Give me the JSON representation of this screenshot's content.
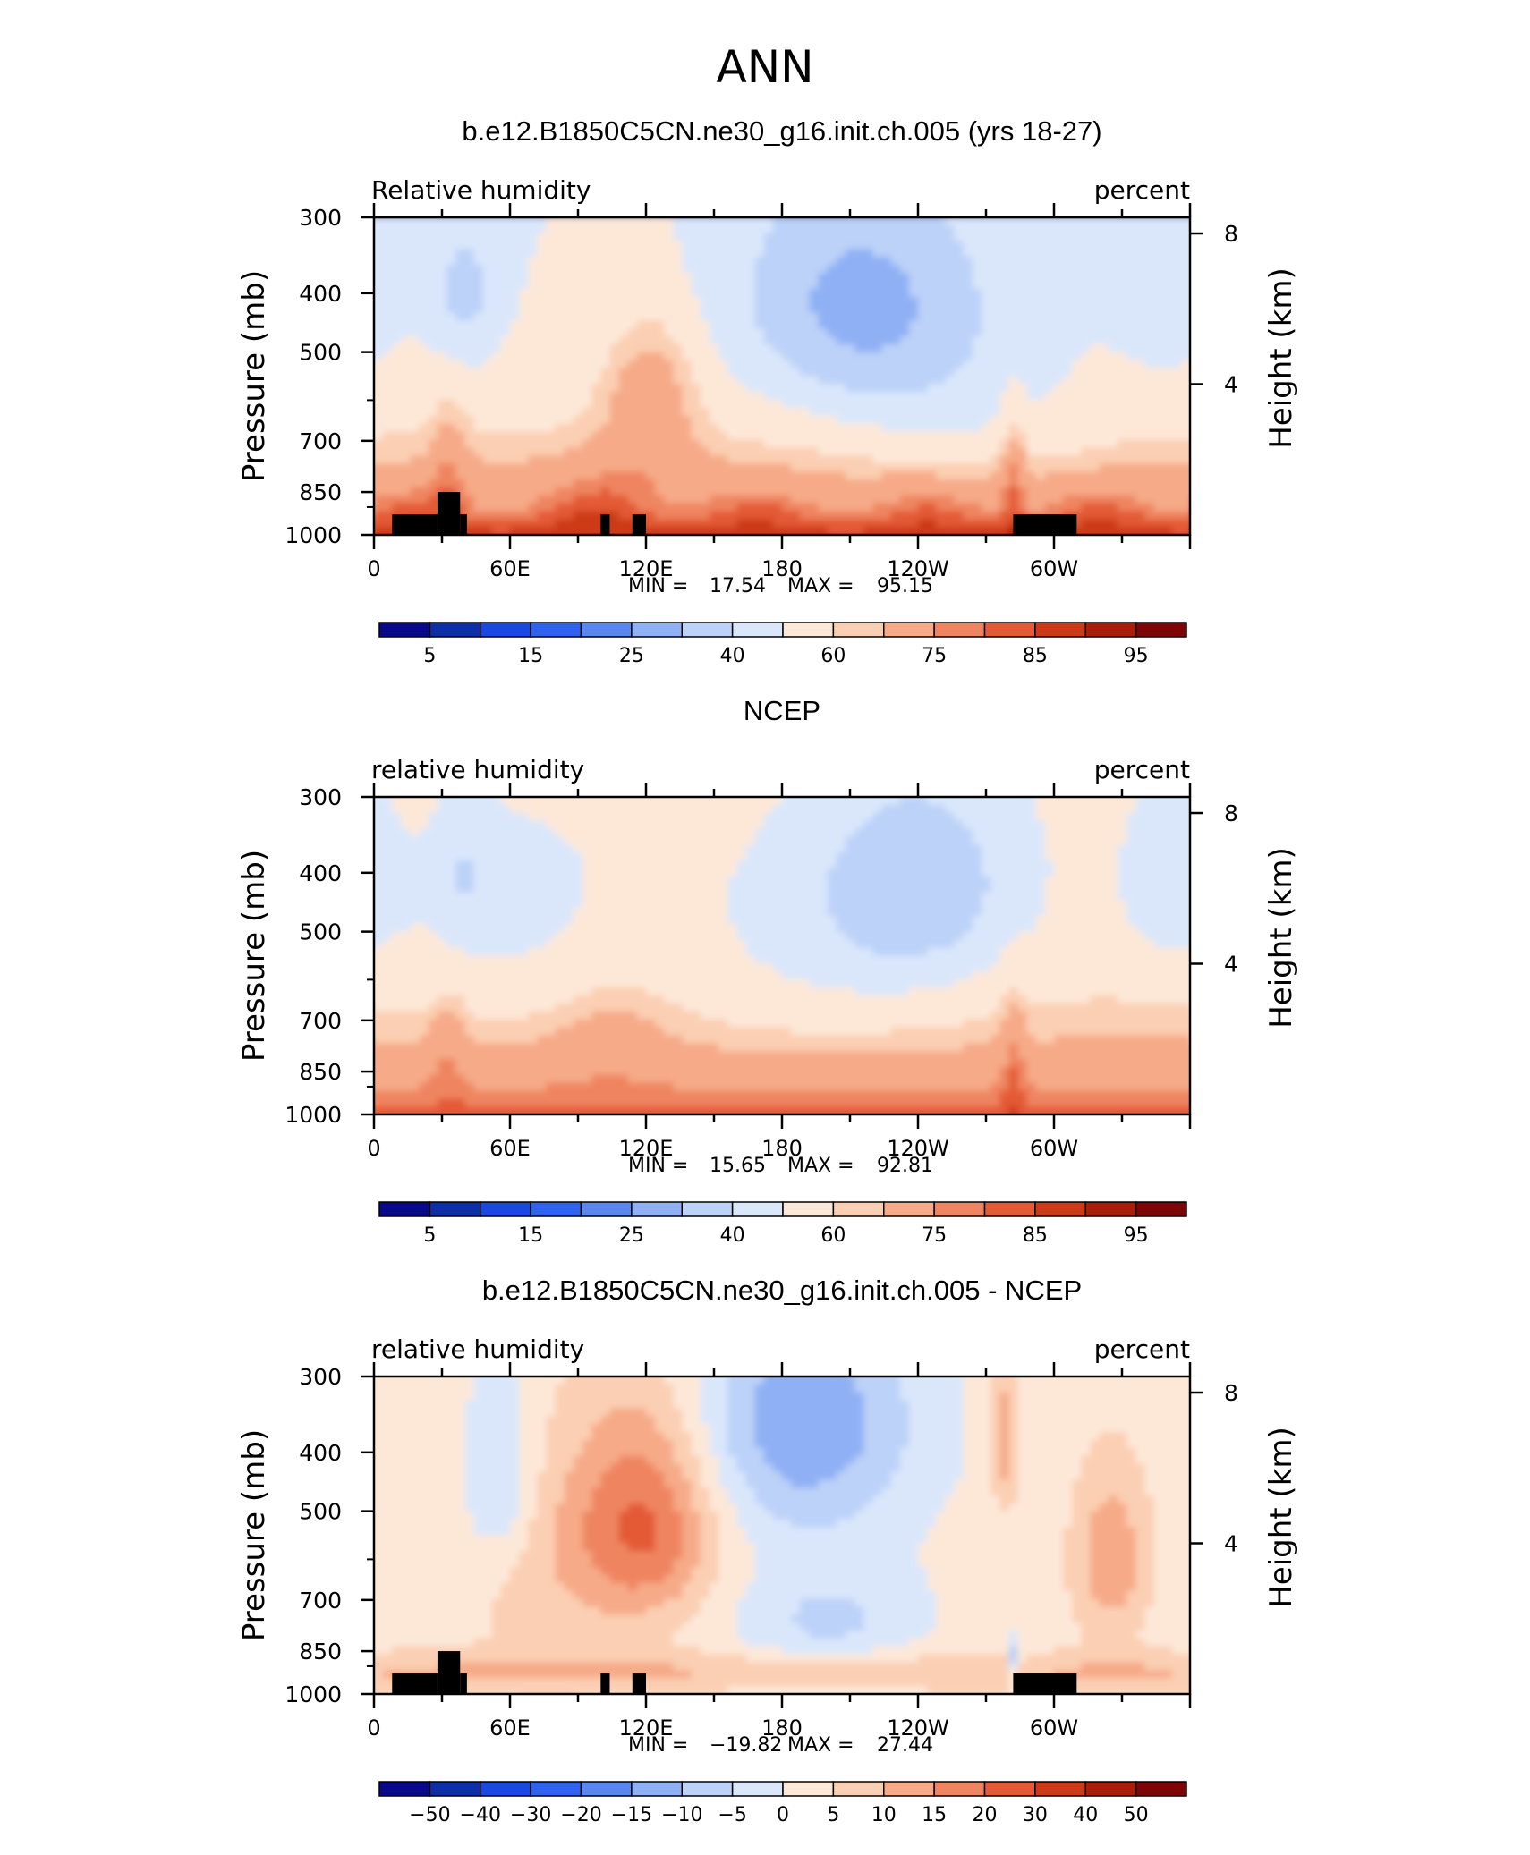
{
  "page_title": "ANN",
  "colors": {
    "model_scale": [
      "#08088a",
      "#0c2ea6",
      "#1b48e0",
      "#2f62ee",
      "#5a86f0",
      "#8fb0f4",
      "#bcd2f8",
      "#dae7fb",
      "#fde8d8",
      "#fbcfb3",
      "#f6aa88",
      "#ef8560",
      "#e35a34",
      "#cc3a18",
      "#a81e0a",
      "#7d0505"
    ],
    "diff_scale": [
      "#08088a",
      "#0c2ea6",
      "#1b48e0",
      "#2f62ee",
      "#5a86f0",
      "#8fb0f4",
      "#bcd2f8",
      "#dae7fb",
      "#fde8d8",
      "#fbcfb3",
      "#f6aa88",
      "#ef8560",
      "#e35a34",
      "#cc3a18",
      "#a81e0a",
      "#7d0505"
    ],
    "topography": "#000000"
  },
  "chart_data": [
    {
      "type": "heatmap",
      "title": "b.e12.B1850C5CN.ne30_g16.init.ch.005 (yrs 18-27)",
      "left_label": "Relative humidity",
      "right_label": "percent",
      "ylabel": "Pressure (mb)",
      "y2label": "Height (km)",
      "x_tick_labels": [
        "0",
        "60E",
        "120E",
        "180",
        "120W",
        "60W"
      ],
      "y_tick_labels": [
        "300",
        "400",
        "500",
        "700",
        "850",
        "1000"
      ],
      "y2_tick_labels": [
        "8",
        "4"
      ],
      "stats": {
        "min_label": "MIN =",
        "min": "17.54",
        "max_label": "MAX =",
        "max": "95.15"
      },
      "colorbar_labels": [
        "5",
        "15",
        "25",
        "40",
        "60",
        "75",
        "85",
        "95"
      ],
      "topography": true
    },
    {
      "type": "heatmap",
      "title": "NCEP",
      "left_label": "relative humidity",
      "right_label": "percent",
      "ylabel": "Pressure (mb)",
      "y2label": "Height (km)",
      "x_tick_labels": [
        "0",
        "60E",
        "120E",
        "180",
        "120W",
        "60W"
      ],
      "y_tick_labels": [
        "300",
        "400",
        "500",
        "700",
        "850",
        "1000"
      ],
      "y2_tick_labels": [
        "8",
        "4"
      ],
      "stats": {
        "min_label": "MIN =",
        "min": "15.65",
        "max_label": "MAX =",
        "max": "92.81"
      },
      "colorbar_labels": [
        "5",
        "15",
        "25",
        "40",
        "60",
        "75",
        "85",
        "95"
      ],
      "topography": false
    },
    {
      "type": "heatmap",
      "title": "b.e12.B1850C5CN.ne30_g16.init.ch.005 - NCEP",
      "left_label": "relative humidity",
      "right_label": "percent",
      "ylabel": "Pressure (mb)",
      "y2label": "Height (km)",
      "x_tick_labels": [
        "0",
        "60E",
        "120E",
        "180",
        "120W",
        "60W"
      ],
      "y_tick_labels": [
        "300",
        "400",
        "500",
        "700",
        "850",
        "1000"
      ],
      "y2_tick_labels": [
        "8",
        "4"
      ],
      "stats": {
        "min_label": "MIN =",
        "min": "−19.82",
        "max_label": "MAX =",
        "max": "27.44"
      },
      "colorbar_labels": [
        "−50",
        "−40",
        "−30",
        "−20",
        "−15",
        "−10",
        "−5",
        "0",
        "5",
        "10",
        "15",
        "20",
        "30",
        "40",
        "50"
      ],
      "topography": true
    }
  ]
}
